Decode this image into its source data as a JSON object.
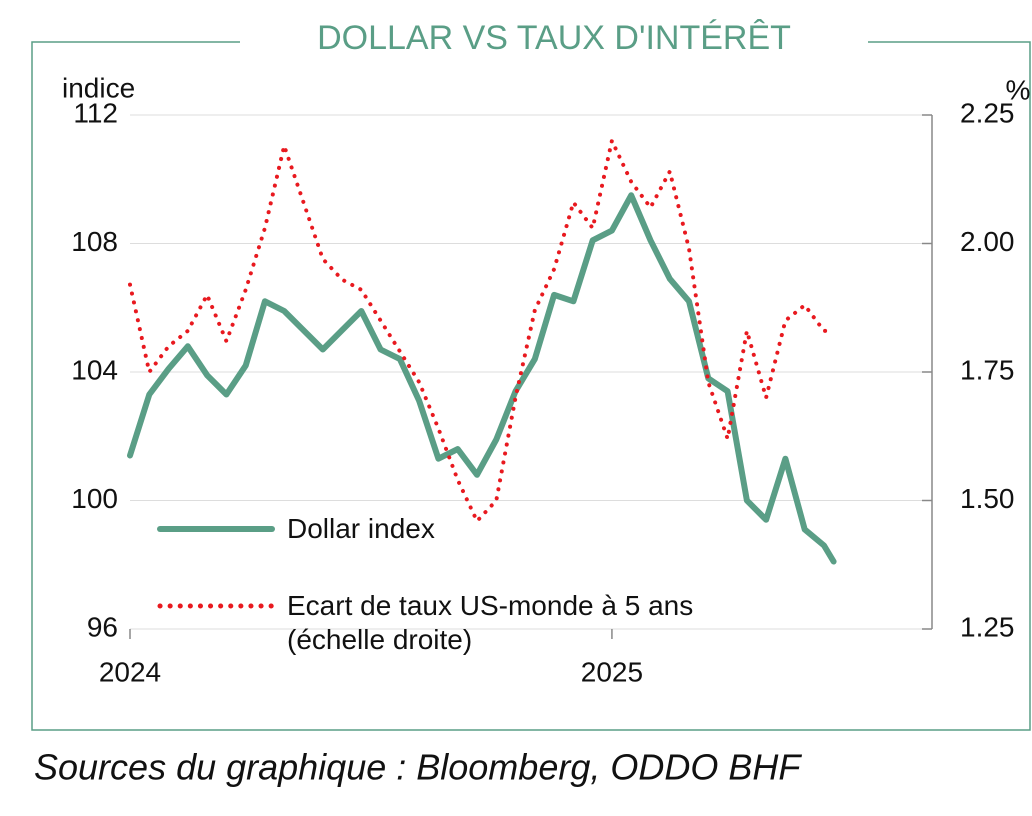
{
  "chart_data": {
    "type": "line",
    "title": "DOLLAR VS TAUX D'INTÉRÊT",
    "y_label": "indice",
    "y2_label": "%",
    "source": "Sources du graphique : Bloomberg, ODDO BHF",
    "x": [
      2024.0,
      2024.04,
      2024.08,
      2024.12,
      2024.16,
      2024.2,
      2024.24,
      2024.28,
      2024.32,
      2024.36,
      2024.4,
      2024.44,
      2024.48,
      2024.52,
      2024.56,
      2024.6,
      2024.64,
      2024.68,
      2024.72,
      2024.76,
      2024.8,
      2024.84,
      2024.88,
      2024.92,
      2024.96,
      2025.0,
      2025.04,
      2025.08,
      2025.12,
      2025.16,
      2025.2,
      2025.24,
      2025.28,
      2025.32,
      2025.36,
      2025.4,
      2025.44,
      2025.46
    ],
    "series": [
      {
        "name": "Dollar index",
        "color": "#5a9e86",
        "axis": "y",
        "values": [
          101.4,
          103.3,
          104.1,
          104.8,
          103.9,
          103.3,
          104.2,
          106.2,
          105.9,
          105.3,
          104.7,
          105.3,
          105.9,
          104.7,
          104.4,
          103.1,
          101.3,
          101.6,
          100.8,
          101.9,
          103.4,
          104.4,
          106.4,
          106.2,
          108.1,
          108.4,
          109.5,
          108.1,
          106.9,
          106.2,
          103.8,
          103.4,
          100.0,
          99.4,
          101.3,
          99.1,
          98.6,
          98.1
        ]
      },
      {
        "name": "Ecart de taux US-monde à 5 ans\n(échelle droite)",
        "color": "#e8191f",
        "axis": "y2",
        "dotted": true,
        "values": [
          1.92,
          1.75,
          1.8,
          1.83,
          1.9,
          1.81,
          1.91,
          2.03,
          2.19,
          2.08,
          1.97,
          1.93,
          1.91,
          1.85,
          1.79,
          1.73,
          1.64,
          1.54,
          1.46,
          1.5,
          1.7,
          1.87,
          1.95,
          2.08,
          2.03,
          2.2,
          2.12,
          2.07,
          2.14,
          1.99,
          1.73,
          1.62,
          1.83,
          1.7,
          1.85,
          1.88,
          1.83,
          1.83
        ]
      }
    ],
    "xlim": [
      2024,
      2025.66
    ],
    "xticks": [
      2024,
      2025
    ],
    "ylim": [
      96,
      112
    ],
    "yticks": [
      96,
      100,
      104,
      108,
      112
    ],
    "y2lim": [
      1.25,
      2.25
    ],
    "y2ticks": [
      1.25,
      {
        "value": 1.5,
        "label": "1.50"
      },
      1.75,
      {
        "value": 2,
        "label": "2.00"
      },
      2.25
    ],
    "grid": true,
    "legend": "lower-left"
  }
}
